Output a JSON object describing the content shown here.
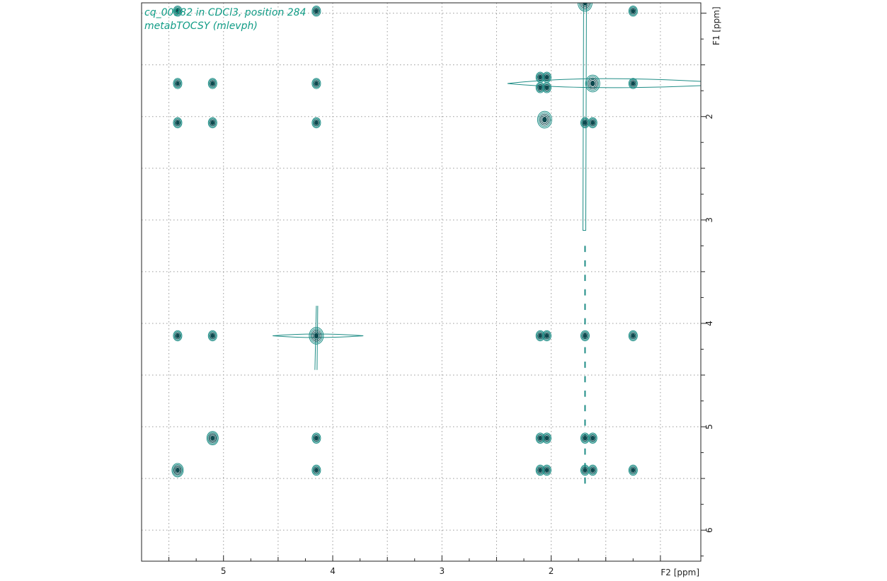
{
  "chart_data": {
    "type": "contour",
    "title_lines": [
      "cq_00982 in CDCl3, position 284",
      "metabTOCSY (mlevph)"
    ],
    "xlabel": "F2 [ppm]",
    "ylabel": "F1 [ppm]",
    "xlim": [
      5.75,
      0.63
    ],
    "ylim": [
      0.9,
      6.3
    ],
    "x_ticks": [
      "5",
      "4",
      "3",
      "2"
    ],
    "y_ticks": [
      "2",
      "3",
      "4",
      "5",
      "6"
    ],
    "grid": true,
    "colors": {
      "contour_dark": "#0d4a4f",
      "contour_light": "#1f8d86",
      "title": "#119c86",
      "axis": "#222222",
      "grid": "#9a9a9a"
    },
    "diagonal_peaks": [
      {
        "x": 1.69,
        "y": 0.9,
        "size": "large"
      },
      {
        "x": 1.62,
        "y": 1.68,
        "size": "large"
      },
      {
        "x": 2.06,
        "y": 2.03,
        "size": "large"
      },
      {
        "x": 4.15,
        "y": 4.12,
        "size": "large"
      },
      {
        "x": 5.1,
        "y": 5.11,
        "size": "medium"
      },
      {
        "x": 5.42,
        "y": 5.42,
        "size": "medium"
      }
    ],
    "cross_peaks": [
      {
        "x": 5.42,
        "y": 0.98
      },
      {
        "x": 4.15,
        "y": 0.98
      },
      {
        "x": 1.25,
        "y": 0.98
      },
      {
        "x": 5.42,
        "y": 1.68
      },
      {
        "x": 5.1,
        "y": 1.68
      },
      {
        "x": 4.15,
        "y": 1.68
      },
      {
        "x": 2.1,
        "y": 1.62
      },
      {
        "x": 2.1,
        "y": 1.72
      },
      {
        "x": 2.04,
        "y": 1.62
      },
      {
        "x": 2.04,
        "y": 1.72
      },
      {
        "x": 1.25,
        "y": 1.68
      },
      {
        "x": 5.42,
        "y": 2.06
      },
      {
        "x": 5.1,
        "y": 2.06
      },
      {
        "x": 4.15,
        "y": 2.06
      },
      {
        "x": 1.69,
        "y": 2.06
      },
      {
        "x": 1.62,
        "y": 2.06
      },
      {
        "x": 5.42,
        "y": 4.12
      },
      {
        "x": 5.1,
        "y": 4.12
      },
      {
        "x": 2.1,
        "y": 4.12
      },
      {
        "x": 2.04,
        "y": 4.12
      },
      {
        "x": 1.69,
        "y": 4.12
      },
      {
        "x": 1.25,
        "y": 4.12
      },
      {
        "x": 4.15,
        "y": 5.11
      },
      {
        "x": 2.1,
        "y": 5.11
      },
      {
        "x": 2.04,
        "y": 5.11
      },
      {
        "x": 1.69,
        "y": 5.11
      },
      {
        "x": 1.62,
        "y": 5.11
      },
      {
        "x": 4.15,
        "y": 5.42
      },
      {
        "x": 2.1,
        "y": 5.42
      },
      {
        "x": 2.04,
        "y": 5.42
      },
      {
        "x": 1.69,
        "y": 5.42
      },
      {
        "x": 1.62,
        "y": 5.42
      },
      {
        "x": 1.25,
        "y": 5.42
      }
    ]
  }
}
